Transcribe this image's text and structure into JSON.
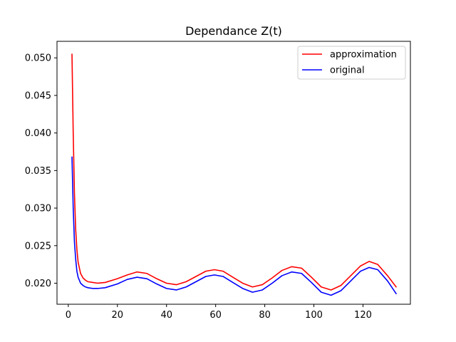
{
  "chart_data": {
    "type": "line",
    "title": "Dependance Z(t)",
    "xlabel": "",
    "ylabel": "",
    "xlim": [
      -4.6,
      139.3
    ],
    "ylim": [
      0.0172,
      0.0522
    ],
    "xticks": [
      0,
      20,
      40,
      60,
      80,
      100,
      120
    ],
    "xtick_labels": [
      "0",
      "20",
      "40",
      "60",
      "80",
      "100",
      "120"
    ],
    "yticks": [
      0.02,
      0.025,
      0.03,
      0.035,
      0.04,
      0.045,
      0.05
    ],
    "ytick_labels": [
      "0.020",
      "0.025",
      "0.030",
      "0.035",
      "0.040",
      "0.045",
      "0.050"
    ],
    "grid": false,
    "legend_position": "top-right",
    "series": [
      {
        "name": "approximation",
        "color": "#ff0000",
        "x": [
          1.5,
          2.0,
          2.5,
          3.0,
          3.5,
          4.0,
          5.0,
          6.0,
          7.0,
          8.0,
          10.0,
          12.0,
          15.0,
          20.0,
          24.0,
          28.0,
          32.0,
          36.0,
          40.0,
          44.0,
          48.0,
          52.0,
          56.0,
          59.5,
          63.0,
          67.0,
          71.0,
          75.0,
          79.0,
          83.0,
          87.0,
          91.0,
          95.0,
          99.0,
          103.0,
          107.0,
          111.0,
          115.0,
          119.0,
          122.5,
          126.0,
          130.0,
          133.5
        ],
        "y": [
          0.0505,
          0.04,
          0.032,
          0.0272,
          0.0245,
          0.0228,
          0.0213,
          0.0207,
          0.0204,
          0.0202,
          0.0201,
          0.02,
          0.0201,
          0.0206,
          0.0211,
          0.0215,
          0.0213,
          0.0206,
          0.02,
          0.0198,
          0.0202,
          0.0209,
          0.0216,
          0.0218,
          0.0216,
          0.0208,
          0.02,
          0.0195,
          0.0198,
          0.0207,
          0.0217,
          0.0222,
          0.022,
          0.0208,
          0.0195,
          0.0191,
          0.0197,
          0.021,
          0.0223,
          0.0229,
          0.0225,
          0.021,
          0.0195
        ]
      },
      {
        "name": "original",
        "color": "#0000ff",
        "x": [
          1.5,
          2.0,
          2.5,
          3.0,
          3.5,
          4.0,
          5.0,
          6.0,
          7.0,
          8.0,
          10.0,
          12.0,
          15.0,
          20.0,
          24.0,
          28.0,
          32.0,
          36.0,
          40.0,
          44.0,
          48.0,
          52.0,
          56.0,
          59.5,
          63.0,
          67.0,
          71.0,
          75.0,
          79.0,
          83.0,
          87.0,
          91.0,
          95.0,
          99.0,
          103.0,
          107.0,
          111.0,
          115.0,
          119.0,
          122.5,
          126.0,
          130.0,
          133.5
        ],
        "y": [
          0.0368,
          0.03,
          0.0255,
          0.0232,
          0.0216,
          0.0208,
          0.02,
          0.0197,
          0.0195,
          0.0194,
          0.0193,
          0.0193,
          0.0194,
          0.0199,
          0.0205,
          0.0208,
          0.0206,
          0.0199,
          0.0193,
          0.0191,
          0.0195,
          0.0202,
          0.0209,
          0.0211,
          0.0209,
          0.0201,
          0.0193,
          0.0188,
          0.0191,
          0.02,
          0.021,
          0.0215,
          0.0213,
          0.0201,
          0.0188,
          0.0184,
          0.019,
          0.0203,
          0.0216,
          0.0221,
          0.0218,
          0.0203,
          0.0186
        ]
      }
    ]
  }
}
